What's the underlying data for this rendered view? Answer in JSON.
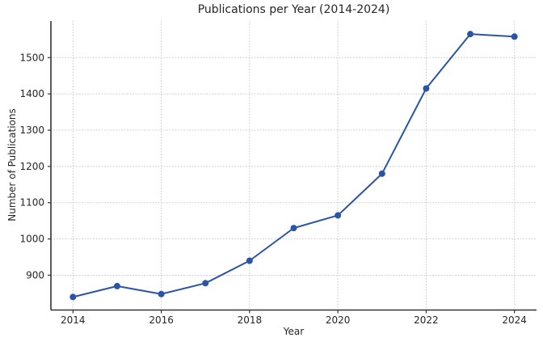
{
  "figure": {
    "background_color": "#ffffff"
  },
  "chart_data": {
    "type": "line",
    "title": "Publications per Year (2014-2024)",
    "xlabel": "Year",
    "ylabel": "Number of Publications",
    "x": [
      2014,
      2015,
      2016,
      2017,
      2018,
      2019,
      2020,
      2021,
      2022,
      2023,
      2024
    ],
    "series": [
      {
        "name": "Publications",
        "values": [
          840,
          870,
          848,
          878,
          940,
          1030,
          1065,
          1180,
          1415,
          1565,
          1558
        ]
      }
    ],
    "xticks": [
      2014,
      2016,
      2018,
      2020,
      2022,
      2024
    ],
    "yticks": [
      900,
      1000,
      1100,
      1200,
      1300,
      1400,
      1500
    ],
    "xlim": [
      2013.5,
      2024.5
    ],
    "ylim": [
      804,
      1601
    ],
    "grid": true,
    "grid_style": "dotted",
    "legend": "none",
    "marker": "circle",
    "line_color": "#2a54a8",
    "grid_color": "#cccccc",
    "axis_color": "#333333",
    "text_color": "#262626"
  }
}
